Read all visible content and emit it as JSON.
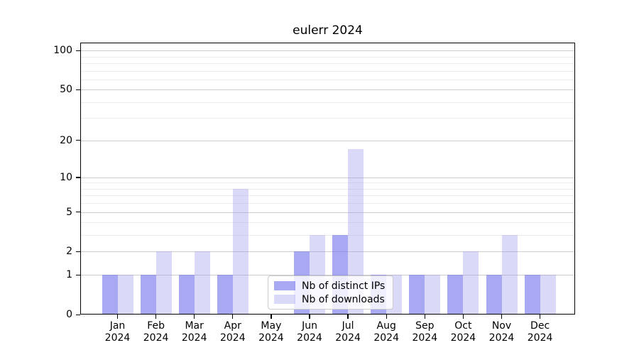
{
  "figure": {
    "background": "#ffffff"
  },
  "chart_data": {
    "type": "bar",
    "title": "eulerr 2024",
    "categories": [
      "Jan",
      "Feb",
      "Mar",
      "Apr",
      "May",
      "Jun",
      "Jul",
      "Aug",
      "Sep",
      "Oct",
      "Nov",
      "Dec"
    ],
    "year": "2024",
    "series": [
      {
        "name": "Nb of distinct IPs",
        "color": "rgba(110,110,235,0.60)",
        "values": [
          1,
          1,
          1,
          1,
          0,
          2,
          3,
          1,
          1,
          1,
          1,
          1
        ]
      },
      {
        "name": "Nb of downloads",
        "color": "rgba(150,150,235,0.35)",
        "values": [
          1,
          2,
          2,
          8,
          0,
          3,
          17,
          1,
          1,
          2,
          3,
          1
        ]
      }
    ],
    "yscale": "log1p",
    "ylim": [
      0,
      115
    ],
    "y_major_ticks": [
      0,
      1,
      2,
      5,
      10,
      20,
      50,
      100
    ],
    "y_minor_gridlines": [
      3,
      4,
      6,
      7,
      8,
      9,
      30,
      40,
      60,
      70,
      80,
      90
    ],
    "grid": "horizontal",
    "legend_position": "lower-center",
    "colors": {
      "axis": "#000000",
      "grid_major": "#cdcdcd",
      "grid_minor": "#ececec",
      "text": "#000000",
      "legend_border": "#cccccc",
      "legend_bg": "rgba(255,255,255,0.8)"
    }
  }
}
